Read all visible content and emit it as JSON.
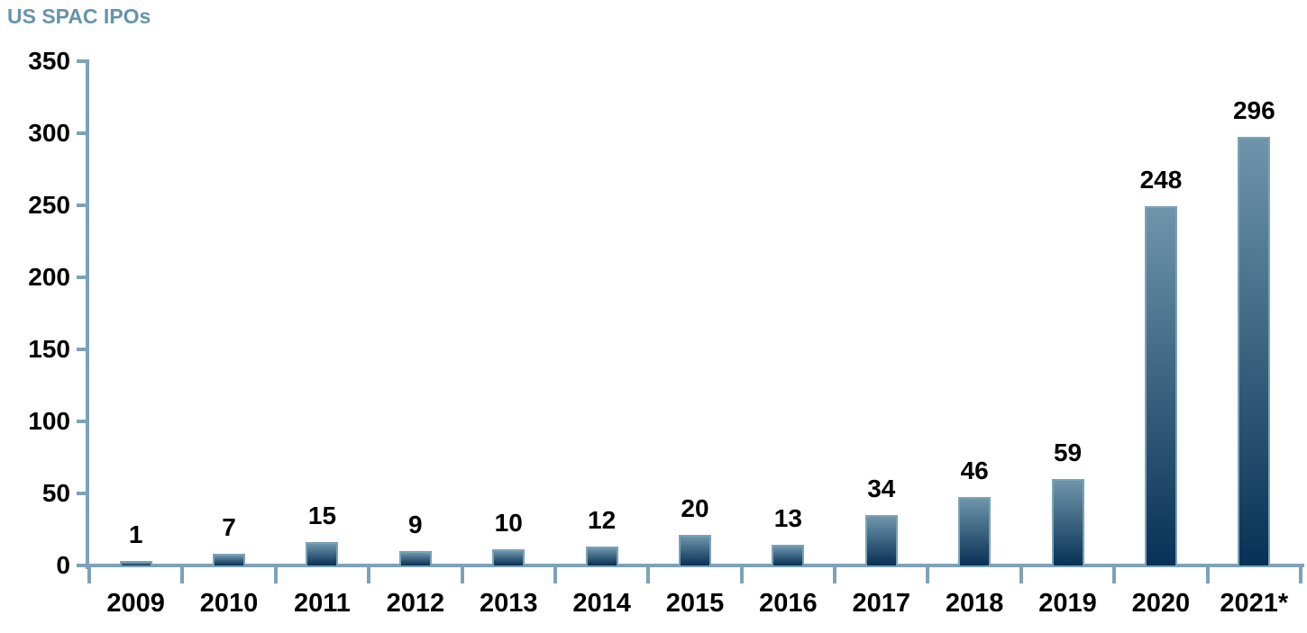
{
  "title": {
    "text": "US SPAC IPOs",
    "color": "#6793ab"
  },
  "chart_data": {
    "type": "bar",
    "title": "US SPAC IPOs",
    "categories": [
      "2009",
      "2010",
      "2011",
      "2012",
      "2013",
      "2014",
      "2015",
      "2016",
      "2017",
      "2018",
      "2019",
      "2020",
      "2021*"
    ],
    "values": [
      1,
      7,
      15,
      9,
      10,
      12,
      20,
      13,
      34,
      46,
      59,
      248,
      296
    ],
    "xlabel": "",
    "ylabel": "",
    "ylim": [
      0,
      350
    ],
    "yticks": [
      0,
      50,
      100,
      150,
      200,
      250,
      300,
      350
    ],
    "grid": false,
    "legend": false,
    "data_labels": true,
    "colors": {
      "axis": "#7da2b8",
      "bar_gradient_top": "#6e95aa",
      "bar_gradient_bottom": "#073156",
      "bar_border": "#7ca2b5",
      "label_text": "#000000"
    }
  }
}
